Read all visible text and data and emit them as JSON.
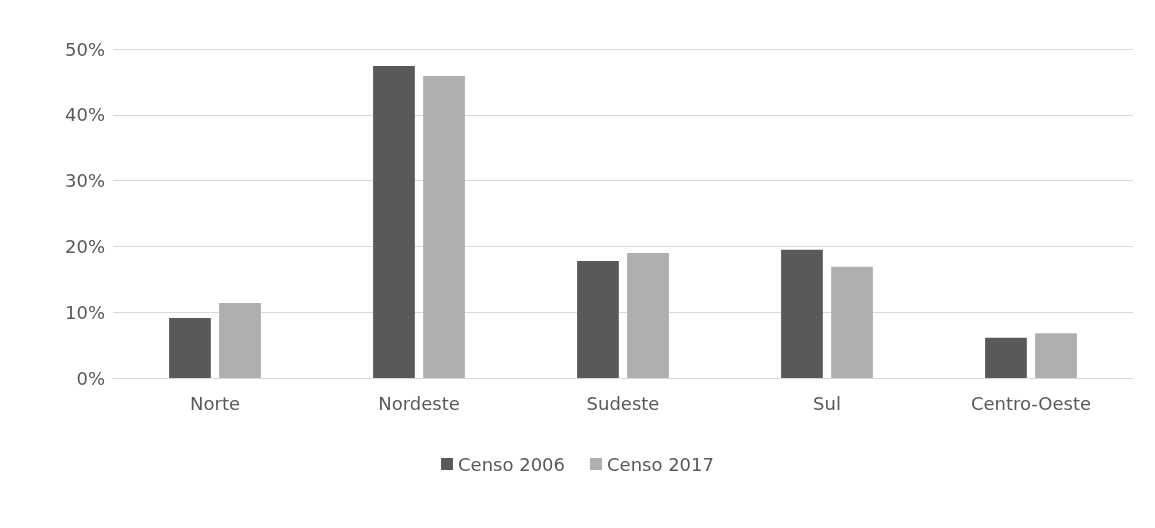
{
  "chart_data": {
    "type": "bar",
    "categories": [
      "Norte",
      "Nordeste",
      "Sudeste",
      "Sul",
      "Centro-Oeste"
    ],
    "series": [
      {
        "name": "Censo 2006",
        "color": "#595959",
        "values": [
          9.1,
          47.4,
          17.8,
          19.5,
          6.1
        ]
      },
      {
        "name": "Censo 2017",
        "color": "#afafaf",
        "values": [
          11.4,
          45.9,
          19.0,
          16.9,
          6.8
        ]
      }
    ],
    "ylim": [
      0,
      50
    ],
    "yticks": [
      {
        "value": 0,
        "label": "0%"
      },
      {
        "value": 10,
        "label": "10%"
      },
      {
        "value": 20,
        "label": "20%"
      },
      {
        "value": 30,
        "label": "30%"
      },
      {
        "value": 40,
        "label": "40%"
      },
      {
        "value": 50,
        "label": "50%"
      }
    ],
    "grid": "y",
    "legend": "bottom"
  }
}
